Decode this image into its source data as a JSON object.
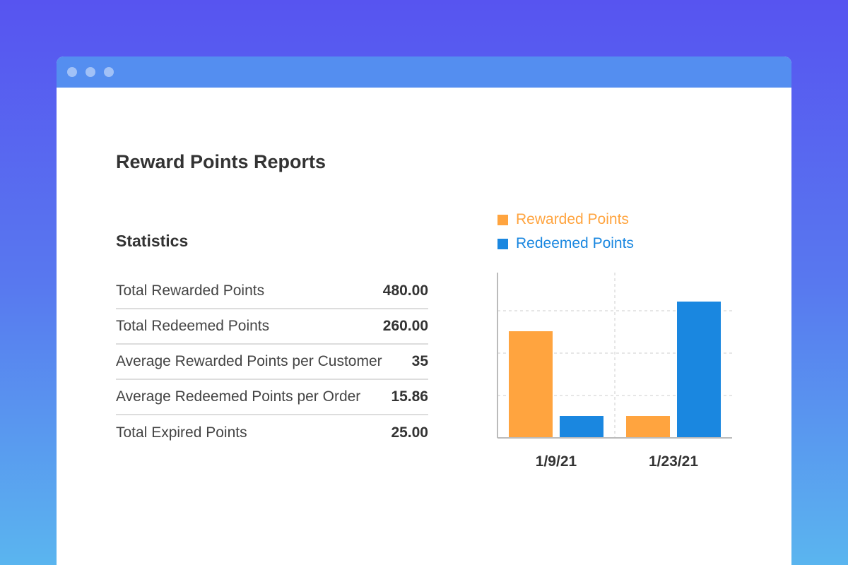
{
  "report": {
    "title": "Reward Points Reports",
    "stats_heading": "Statistics"
  },
  "stats": [
    {
      "label": "Total Rewarded Points",
      "value": "480.00"
    },
    {
      "label": "Total Redeemed Points",
      "value": "260.00"
    },
    {
      "label": "Average Rewarded Points per Customer",
      "value": "35"
    },
    {
      "label": "Average Redeemed Points per Order",
      "value": "15.86"
    },
    {
      "label": "Total Expired Points",
      "value": "25.00"
    }
  ],
  "legend": [
    {
      "label": "Rewarded Points",
      "color": "#ffa43f"
    },
    {
      "label": "Redeemed Points",
      "color": "#1a87e0"
    }
  ],
  "chart_data": {
    "type": "bar",
    "categories": [
      "1/9/21",
      "1/23/21"
    ],
    "series": [
      {
        "name": "Rewarded Points",
        "color": "#ffa43f",
        "values": [
          2.5,
          0.5
        ]
      },
      {
        "name": "Redeemed Points",
        "color": "#1a87e0",
        "values": [
          0.5,
          3.2
        ]
      }
    ],
    "ylim": [
      0,
      3.9
    ],
    "gridlines": [
      1,
      2,
      3
    ],
    "grid": true,
    "legend_position": "top-left",
    "title": "",
    "xlabel": "",
    "ylabel": ""
  },
  "colors": {
    "titlebar": "#548ef0",
    "text": "#333333"
  }
}
